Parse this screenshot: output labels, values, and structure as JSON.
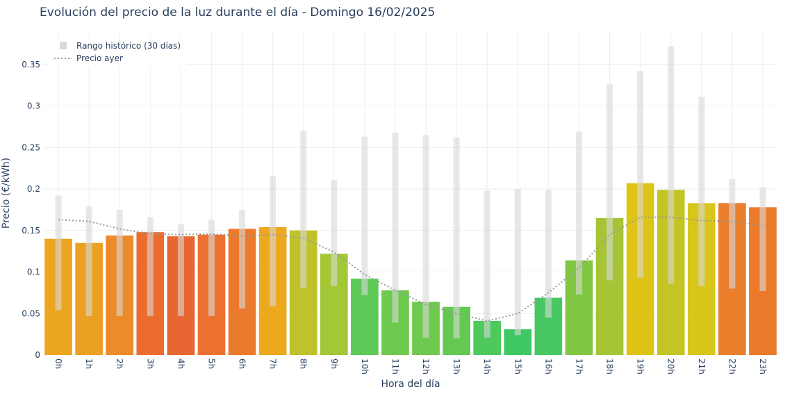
{
  "chart_data": {
    "type": "bar",
    "title": "Evolución del precio de la luz durante el día - Domingo 16/02/2025",
    "xlabel": "Hora del día",
    "ylabel": "Precio (€/kWh)",
    "ylim": [
      0,
      0.39
    ],
    "yticks": [
      0,
      0.05,
      0.1,
      0.15,
      0.2,
      0.25,
      0.3,
      0.35
    ],
    "ytick_labels": [
      "0",
      "0.05",
      "0.1",
      "0.15",
      "0.2",
      "0.25",
      "0.3",
      "0.35"
    ],
    "grid": true,
    "legend_position": "top-left",
    "categories": [
      "0h",
      "1h",
      "2h",
      "3h",
      "4h",
      "5h",
      "6h",
      "7h",
      "8h",
      "9h",
      "10h",
      "11h",
      "12h",
      "13h",
      "14h",
      "15h",
      "16h",
      "17h",
      "18h",
      "19h",
      "20h",
      "21h",
      "22h",
      "23h"
    ],
    "series": [
      {
        "type": "bar",
        "values": [
          0.14,
          0.135,
          0.144,
          0.148,
          0.143,
          0.145,
          0.152,
          0.154,
          0.15,
          0.122,
          0.092,
          0.078,
          0.064,
          0.058,
          0.041,
          0.031,
          0.069,
          0.114,
          0.165,
          0.207,
          0.199,
          0.183,
          0.183,
          0.178
        ],
        "colors": [
          "#eca51f",
          "#eca021",
          "#ed8a2a",
          "#ec6c30",
          "#e86631",
          "#ec7131",
          "#ec7a2d",
          "#eda91e",
          "#bfc22a",
          "#a4c736",
          "#5dc957",
          "#6ec94f",
          "#6ec94f",
          "#64c952",
          "#4ec95c",
          "#40c864",
          "#48c862",
          "#82c743",
          "#a5c536",
          "#dfc418",
          "#c4c424",
          "#d9c61b",
          "#eb7f2c",
          "#ec7a2d"
        ]
      },
      {
        "name": "Rango histórico (30 días)",
        "type": "range",
        "color": "#d9d9d9",
        "low": [
          0.054,
          0.047,
          0.047,
          0.047,
          0.047,
          0.047,
          0.056,
          0.059,
          0.081,
          0.083,
          0.072,
          0.039,
          0.021,
          0.02,
          0.021,
          0.024,
          0.045,
          0.073,
          0.09,
          0.093,
          0.086,
          0.083,
          0.08,
          0.077
        ],
        "high": [
          0.192,
          0.179,
          0.175,
          0.166,
          0.158,
          0.163,
          0.175,
          0.216,
          0.27,
          0.211,
          0.263,
          0.268,
          0.265,
          0.262,
          0.198,
          0.2,
          0.199,
          0.269,
          0.326,
          0.342,
          0.372,
          0.311,
          0.212,
          0.202
        ]
      },
      {
        "name": "Precio ayer",
        "type": "line",
        "color": "#999999",
        "dash": "dot",
        "values": [
          0.163,
          0.161,
          0.152,
          0.146,
          0.145,
          0.146,
          0.143,
          0.145,
          0.141,
          0.124,
          0.097,
          0.078,
          0.061,
          0.05,
          0.041,
          0.05,
          0.075,
          0.105,
          0.145,
          0.166,
          0.166,
          0.162,
          0.161,
          0.156
        ]
      }
    ],
    "legend": [
      {
        "label": "Rango histórico (30 días)"
      },
      {
        "label": "Precio ayer"
      }
    ]
  }
}
